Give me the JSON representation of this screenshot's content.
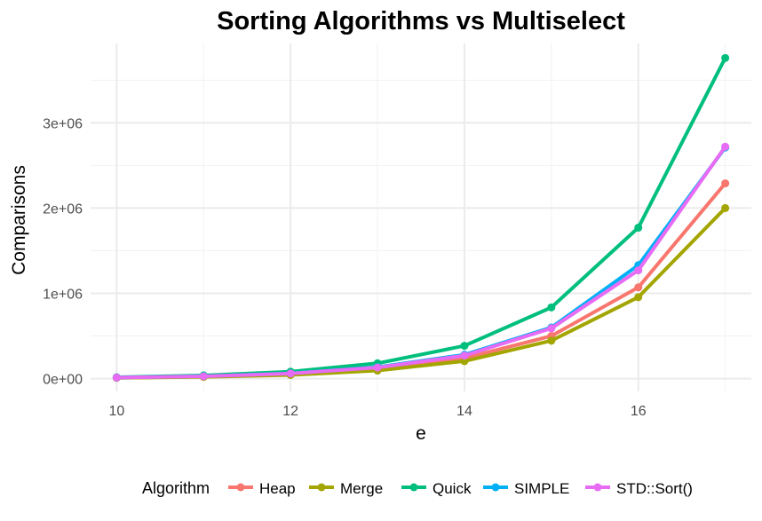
{
  "chart_data": {
    "type": "line",
    "title": "Sorting Algorithms vs Multiselect",
    "xlabel": "e",
    "ylabel": "Comparisons",
    "x": [
      10,
      11,
      12,
      13,
      14,
      15,
      16,
      17
    ],
    "xlim": [
      9.7,
      17.3
    ],
    "ylim": [
      -150000,
      3930000
    ],
    "x_ticks": [
      10,
      12,
      14,
      16
    ],
    "x_tick_labels": [
      "10",
      "12",
      "14",
      "16"
    ],
    "y_ticks": [
      0,
      1000000,
      2000000,
      3000000
    ],
    "y_tick_labels": [
      "0e+00",
      "1e+06",
      "2e+06",
      "3e+06"
    ],
    "grid": true,
    "legend": {
      "title": "Algorithm",
      "position": "bottom"
    },
    "series": [
      {
        "name": "Heap",
        "color": "#F8766D",
        "values": [
          10000,
          23000,
          50000,
          110000,
          240000,
          500000,
          1070000,
          2290000
        ]
      },
      {
        "name": "Merge",
        "color": "#A3A500",
        "values": [
          9000,
          20000,
          43000,
          94000,
          205000,
          445000,
          955000,
          2000000
        ]
      },
      {
        "name": "Quick",
        "color": "#00BF7D",
        "values": [
          16000,
          38000,
          82000,
          180000,
          385000,
          835000,
          1770000,
          3760000
        ]
      },
      {
        "name": "SIMPLE",
        "color": "#00B0F6",
        "values": [
          13000,
          29000,
          62000,
          135000,
          280000,
          600000,
          1330000,
          2710000
        ]
      },
      {
        "name": "STD::Sort()",
        "color": "#E76BF3",
        "values": [
          12000,
          27000,
          60000,
          130000,
          270000,
          590000,
          1270000,
          2720000
        ]
      }
    ]
  }
}
